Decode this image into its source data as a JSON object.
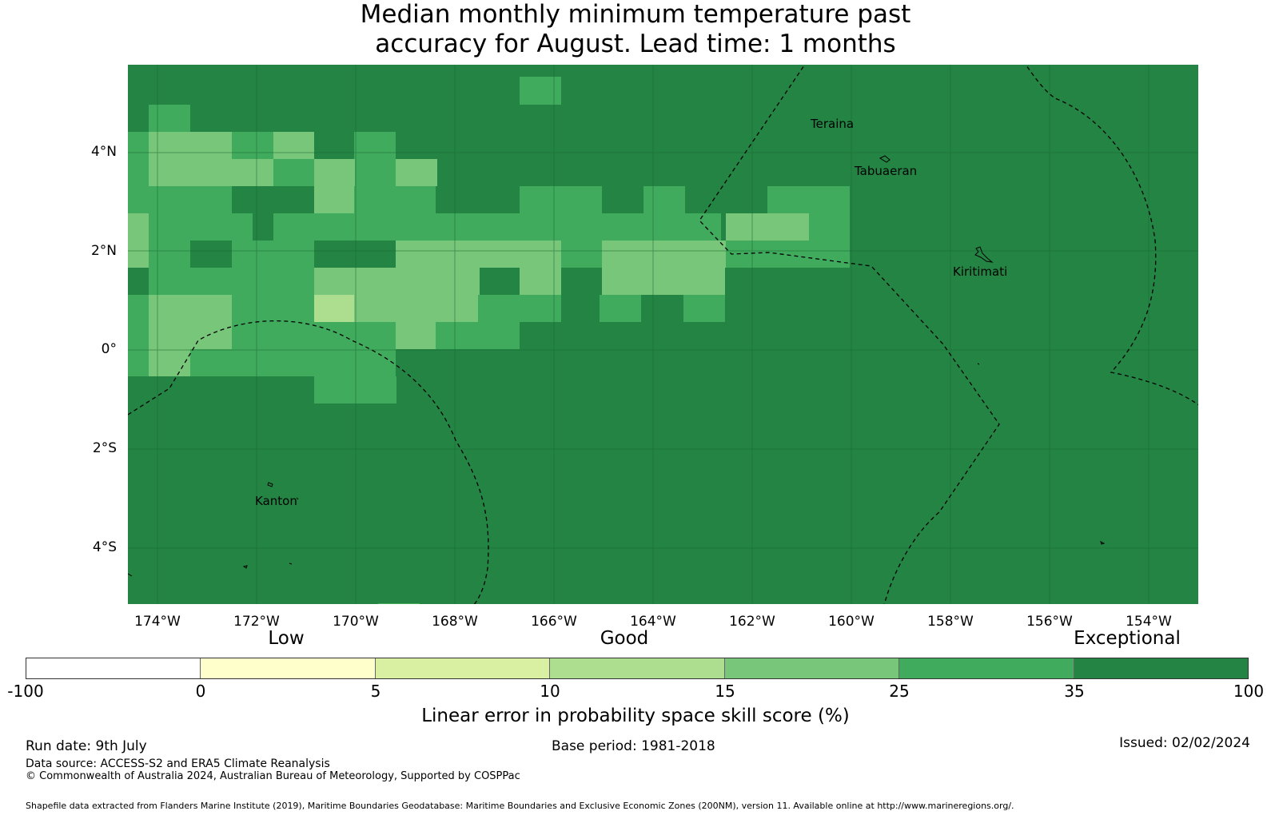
{
  "title_line1": "Median monthly minimum temperature past",
  "title_line2": "accuracy for August. Lead time: 1 months",
  "map": {
    "lat_labels": [
      "4°N",
      "2°N",
      "0°",
      "2°S",
      "4°S"
    ],
    "lon_labels": [
      "174°W",
      "172°W",
      "170°W",
      "168°W",
      "166°W",
      "164°W",
      "162°W",
      "160°W",
      "158°W",
      "156°W",
      "154°W"
    ],
    "places": [
      "Teraina",
      "Tabuaeran",
      "Kiritimati",
      "Kanton"
    ]
  },
  "legend": {
    "categories": [
      "Low",
      "Good",
      "Exceptional"
    ],
    "ticks": [
      "-100",
      "0",
      "5",
      "10",
      "15",
      "25",
      "35",
      "100"
    ],
    "colors": [
      "#ffffff",
      "#ffffcc",
      "#d9f0a3",
      "#addd8e",
      "#78c679",
      "#41ab5d",
      "#238443"
    ],
    "caption": "Linear error in probability space skill score (%)"
  },
  "footer": {
    "run_date": "Run date: 9th July",
    "base_period": "Base period: 1981-2018",
    "issued": "Issued: 02/02/2024",
    "data_source": "Data source: ACCESS-S2 and ERA5 Climate Reanalysis",
    "copyright": "© Commonwealth of Australia 2024, Australian Bureau of Meteorology, Supported by COSPPac",
    "shapefile": "Shapefile data extracted from Flanders Marine Institute (2019), Maritime Boundaries Geodatabase: Maritime Boundaries and Exclusive Economic Zones (200NM), version 11. Available online at http://www.marineregions.org/."
  }
}
